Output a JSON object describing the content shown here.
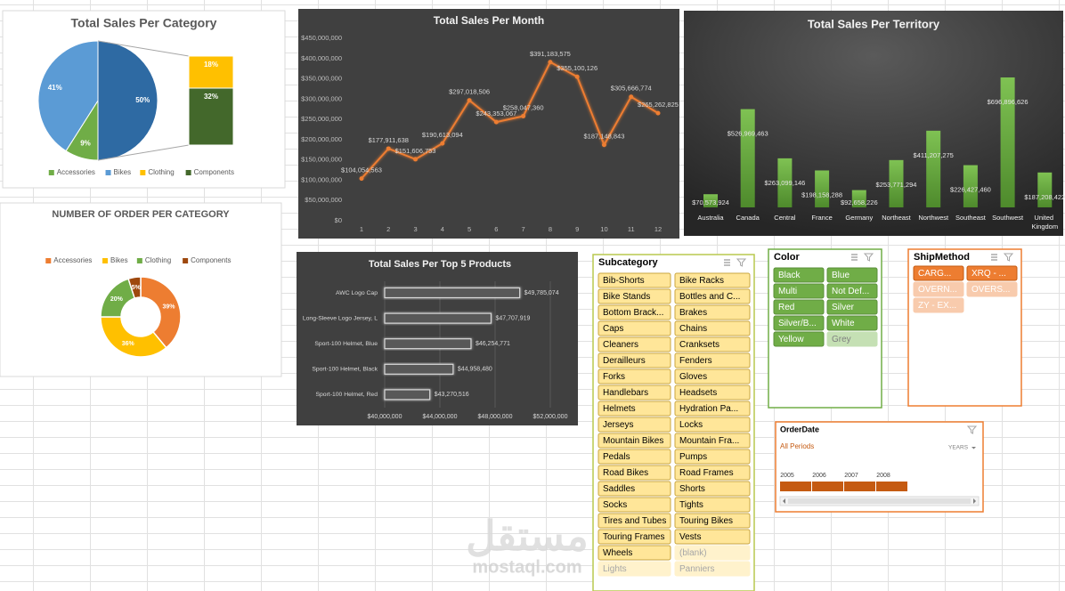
{
  "chart_data": [
    {
      "type": "barofpie",
      "title": "Total Sales Per Category",
      "categories": [
        "Accessories",
        "Bikes",
        "Clothing",
        "Components"
      ],
      "values": [
        9,
        41,
        18,
        32
      ],
      "value_labels": [
        "9%",
        "41%",
        "18%",
        "32%"
      ],
      "colors": [
        "#70ad47",
        "#5b9bd5",
        "#ffc000",
        "#43682b"
      ],
      "other_value": 50,
      "other_value_label": "50%",
      "other_color": "#2e6aa3",
      "split_count": 2,
      "legend": "bottom"
    },
    {
      "type": "donut",
      "title": "NUMBER OF ORDER PER CATEGORY",
      "categories": [
        "Accessories",
        "Bikes",
        "Clothing",
        "Components"
      ],
      "values": [
        39,
        36,
        20,
        5
      ],
      "value_labels": [
        "39%",
        "36%",
        "20%",
        "5%"
      ],
      "colors": [
        "#ed7d31",
        "#ffc000",
        "#70ad47",
        "#9e480e"
      ],
      "legend": "top"
    },
    {
      "type": "line",
      "title": "Total Sales Per Month",
      "categories": [
        "1",
        "2",
        "3",
        "4",
        "5",
        "6",
        "7",
        "8",
        "9",
        "10",
        "11",
        "12"
      ],
      "values": [
        104054563,
        177911638,
        151606753,
        190613094,
        297018506,
        243353067,
        258047360,
        391183575,
        355100126,
        187148843,
        305666774,
        265262825
      ],
      "value_labels": [
        "$104,054,563",
        "$177,911,638",
        "$151,606,753",
        "$190,613,094",
        "$297,018,506",
        "$243,353,067",
        "$258,047,360",
        "$391,183,575",
        "$355,100,126",
        "$187,148,843",
        "$305,666,774",
        "$265,262,825"
      ],
      "color": "#ed7d31",
      "ylim": [
        0,
        450000000
      ],
      "yticks": [
        {
          "value": 0,
          "label": "$0"
        },
        {
          "value": 50000000,
          "label": "$50,000,000"
        },
        {
          "value": 100000000,
          "label": "$100,000,000"
        },
        {
          "value": 150000000,
          "label": "$150,000,000"
        },
        {
          "value": 200000000,
          "label": "$200,000,000"
        },
        {
          "value": 250000000,
          "label": "$250,000,000"
        },
        {
          "value": 300000000,
          "label": "$300,000,000"
        },
        {
          "value": 350000000,
          "label": "$350,000,000"
        },
        {
          "value": 400000000,
          "label": "$400,000,000"
        },
        {
          "value": 450000000,
          "label": "$450,000,000"
        }
      ],
      "grid": false
    },
    {
      "type": "bar",
      "title": "Total Sales Per Territory",
      "categories": [
        "Australia",
        "Canada",
        "Central",
        "France",
        "Germany",
        "Northeast",
        "Northwest",
        "Southeast",
        "Southwest",
        "United Kingdom"
      ],
      "values": [
        70573924,
        526969463,
        263099146,
        198158288,
        92658226,
        253771294,
        411207275,
        226427460,
        696896626,
        187208422
      ],
      "value_labels": [
        "$70,573,924",
        "$526,969,463",
        "$263,099,146",
        "$198,158,288",
        "$92,658,226",
        "$253,771,294",
        "$411,207,275",
        "$226,427,460",
        "$696,896,626",
        "$187,208,422"
      ],
      "color": "#6aab47"
    },
    {
      "type": "hbar",
      "title": "Total Sales Per Top 5 Products",
      "categories": [
        "AWC Logo Cap",
        "Long-Sleeve Logo Jersey, L",
        "Sport-100 Helmet, Blue",
        "Sport-100 Helmet, Black",
        "Sport-100 Helmet, Red"
      ],
      "values": [
        49785074,
        47707919,
        46254771,
        44958480,
        43270516
      ],
      "value_labels": [
        "$49,785,074",
        "$47,707,919",
        "$46,254,771",
        "$44,958,480",
        "$43,270,516"
      ],
      "color": "#595959",
      "xlim": [
        40000000,
        52000000
      ],
      "xticks": [
        {
          "value": 40000000,
          "label": "$40,000,000"
        },
        {
          "value": 44000000,
          "label": "$44,000,000"
        },
        {
          "value": 48000000,
          "label": "$48,000,000"
        },
        {
          "value": 52000000,
          "label": "$52,000,000"
        }
      ],
      "grid": true
    }
  ],
  "slicers": [
    {
      "title": "Subcategory",
      "border_color": "#b9c94f",
      "item_color": "#ffe699",
      "item_border": "#c9a640",
      "item_text_color": "#000000",
      "dim_color": "#fff2cc",
      "dim_text_color": "#a6a6a6",
      "items": [
        {
          "label": "Bib-Shorts",
          "has_data": true
        },
        {
          "label": "Bike Racks",
          "has_data": true
        },
        {
          "label": "Bike Stands",
          "has_data": true
        },
        {
          "label": "Bottles and C...",
          "has_data": true
        },
        {
          "label": "Bottom Brack...",
          "has_data": true
        },
        {
          "label": "Brakes",
          "has_data": true
        },
        {
          "label": "Caps",
          "has_data": true
        },
        {
          "label": "Chains",
          "has_data": true
        },
        {
          "label": "Cleaners",
          "has_data": true
        },
        {
          "label": "Cranksets",
          "has_data": true
        },
        {
          "label": "Derailleurs",
          "has_data": true
        },
        {
          "label": "Fenders",
          "has_data": true
        },
        {
          "label": "Forks",
          "has_data": true
        },
        {
          "label": "Gloves",
          "has_data": true
        },
        {
          "label": "Handlebars",
          "has_data": true
        },
        {
          "label": "Headsets",
          "has_data": true
        },
        {
          "label": "Helmets",
          "has_data": true
        },
        {
          "label": "Hydration Pa...",
          "has_data": true
        },
        {
          "label": "Jerseys",
          "has_data": true
        },
        {
          "label": "Locks",
          "has_data": true
        },
        {
          "label": "Mountain Bikes",
          "has_data": true
        },
        {
          "label": "Mountain Fra...",
          "has_data": true
        },
        {
          "label": "Pedals",
          "has_data": true
        },
        {
          "label": "Pumps",
          "has_data": true
        },
        {
          "label": "Road Bikes",
          "has_data": true
        },
        {
          "label": "Road Frames",
          "has_data": true
        },
        {
          "label": "Saddles",
          "has_data": true
        },
        {
          "label": "Shorts",
          "has_data": true
        },
        {
          "label": "Socks",
          "has_data": true
        },
        {
          "label": "Tights",
          "has_data": true
        },
        {
          "label": "Tires and Tubes",
          "has_data": true
        },
        {
          "label": "Touring Bikes",
          "has_data": true
        },
        {
          "label": "Touring Frames",
          "has_data": true
        },
        {
          "label": "Vests",
          "has_data": true
        },
        {
          "label": "Wheels",
          "has_data": true
        },
        {
          "label": "(blank)",
          "has_data": false
        },
        {
          "label": "Lights",
          "has_data": false
        },
        {
          "label": "Panniers",
          "has_data": false
        }
      ]
    },
    {
      "title": "Color",
      "border_color": "#70ad47",
      "item_color": "#70ad47",
      "item_border": "#5a8f38",
      "item_text_color": "#ffffff",
      "dim_color": "#c5e0b4",
      "dim_text_color": "#7f7f7f",
      "items": [
        {
          "label": "Black",
          "has_data": true
        },
        {
          "label": "Blue",
          "has_data": true
        },
        {
          "label": "Multi",
          "has_data": true
        },
        {
          "label": "Not Def...",
          "has_data": true
        },
        {
          "label": "Red",
          "has_data": true
        },
        {
          "label": "Silver",
          "has_data": true
        },
        {
          "label": "Silver/B...",
          "has_data": true
        },
        {
          "label": "White",
          "has_data": true
        },
        {
          "label": "Yellow",
          "has_data": true
        },
        {
          "label": "Grey",
          "has_data": false
        }
      ]
    },
    {
      "title": "ShipMethod",
      "border_color": "#ed7d31",
      "item_color": "#ed7d31",
      "item_border": "#c55a11",
      "item_text_color": "#ffffff",
      "dim_color": "#f8cbad",
      "dim_text_color": "#ffffff",
      "items": [
        {
          "label": "CARG...",
          "has_data": true
        },
        {
          "label": "XRQ - ...",
          "has_data": true
        },
        {
          "label": "OVERN...",
          "has_data": false
        },
        {
          "label": "OVERS...",
          "has_data": false
        },
        {
          "label": "ZY - EX...",
          "has_data": false
        }
      ]
    }
  ],
  "order_date": {
    "title": "OrderDate",
    "period_label": "All Periods",
    "level": "YEARS",
    "years": [
      2005,
      2006,
      2007,
      2008
    ]
  },
  "watermark": [
    "مستقل",
    "mostaql.com"
  ]
}
